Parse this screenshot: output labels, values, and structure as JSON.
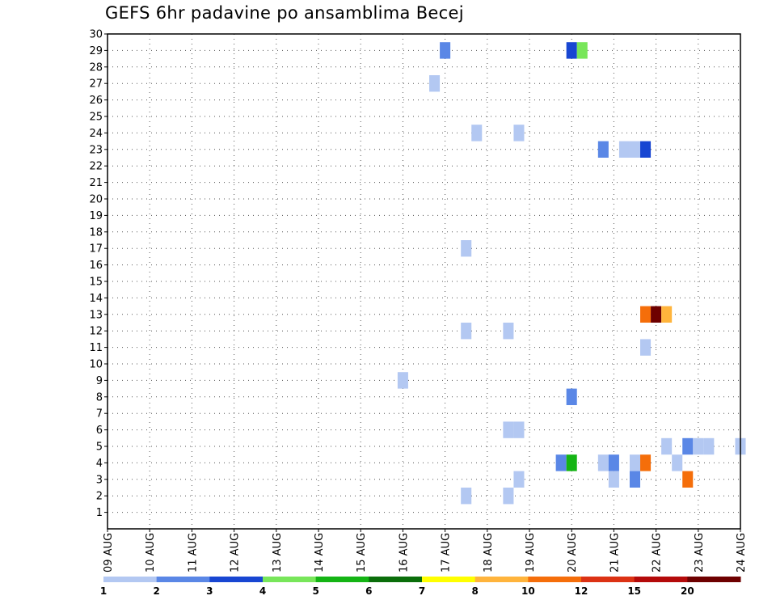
{
  "chart_data": {
    "type": "heatmap",
    "title": "GEFS 6hr padavine po ansamblima Becej",
    "x_tick_labels": [
      "09 AUG",
      "10 AUG",
      "11 AUG",
      "12 AUG",
      "13 AUG",
      "14 AUG",
      "15 AUG",
      "16 AUG",
      "17 AUG",
      "18 AUG",
      "19 AUG",
      "20 AUG",
      "21 AUG",
      "22 AUG",
      "23 AUG",
      "24 AUG"
    ],
    "x_start": "09 AUG 00Z",
    "x_step_hours": 6,
    "y_range": [
      0,
      30
    ],
    "y_ticks": [
      1,
      2,
      3,
      4,
      5,
      6,
      7,
      8,
      9,
      10,
      11,
      12,
      13,
      14,
      15,
      16,
      17,
      18,
      19,
      20,
      21,
      22,
      23,
      24,
      25,
      26,
      27,
      28,
      29,
      30
    ],
    "grid": true,
    "colorbar": {
      "labels": [
        "1",
        "2",
        "3",
        "4",
        "5",
        "6",
        "7",
        "8",
        "10",
        "12",
        "15",
        "20"
      ],
      "colors": [
        "#b3c8f2",
        "#5a87e6",
        "#1846d2",
        "#78e65a",
        "#14b414",
        "#0a6e0a",
        "#ffff00",
        "#ffb43c",
        "#f56e0a",
        "#dc3214",
        "#b40a0a",
        "#6e0000"
      ]
    },
    "cells": [
      {
        "step": 32,
        "member": 29,
        "bin": 2
      },
      {
        "step": 44,
        "member": 29,
        "bin": 3
      },
      {
        "step": 45,
        "member": 29,
        "bin": 4
      },
      {
        "step": 31,
        "member": 27,
        "bin": 1
      },
      {
        "step": 35,
        "member": 24,
        "bin": 1
      },
      {
        "step": 39,
        "member": 24,
        "bin": 1
      },
      {
        "step": 47,
        "member": 23,
        "bin": 2
      },
      {
        "step": 49,
        "member": 23,
        "bin": 1
      },
      {
        "step": 50,
        "member": 23,
        "bin": 1
      },
      {
        "step": 51,
        "member": 23,
        "bin": 3
      },
      {
        "step": 34,
        "member": 17,
        "bin": 1
      },
      {
        "step": 51,
        "member": 13,
        "bin": 9
      },
      {
        "step": 52,
        "member": 13,
        "bin": 12
      },
      {
        "step": 53,
        "member": 13,
        "bin": 8
      },
      {
        "step": 34,
        "member": 12,
        "bin": 1
      },
      {
        "step": 38,
        "member": 12,
        "bin": 1
      },
      {
        "step": 51,
        "member": 11,
        "bin": 1
      },
      {
        "step": 28,
        "member": 9,
        "bin": 1
      },
      {
        "step": 44,
        "member": 8,
        "bin": 2
      },
      {
        "step": 38,
        "member": 6,
        "bin": 1
      },
      {
        "step": 39,
        "member": 6,
        "bin": 1
      },
      {
        "step": 53,
        "member": 5,
        "bin": 1
      },
      {
        "step": 55,
        "member": 5,
        "bin": 2
      },
      {
        "step": 56,
        "member": 5,
        "bin": 1
      },
      {
        "step": 57,
        "member": 5,
        "bin": 1
      },
      {
        "step": 60,
        "member": 5,
        "bin": 1
      },
      {
        "step": 43,
        "member": 4,
        "bin": 2
      },
      {
        "step": 44,
        "member": 4,
        "bin": 5
      },
      {
        "step": 47,
        "member": 4,
        "bin": 1
      },
      {
        "step": 48,
        "member": 4,
        "bin": 2
      },
      {
        "step": 50,
        "member": 4,
        "bin": 1
      },
      {
        "step": 51,
        "member": 4,
        "bin": 9
      },
      {
        "step": 54,
        "member": 4,
        "bin": 1
      },
      {
        "step": 39,
        "member": 3,
        "bin": 1
      },
      {
        "step": 48,
        "member": 3,
        "bin": 1
      },
      {
        "step": 50,
        "member": 3,
        "bin": 2
      },
      {
        "step": 55,
        "member": 3,
        "bin": 9
      },
      {
        "step": 34,
        "member": 2,
        "bin": 1
      },
      {
        "step": 38,
        "member": 2,
        "bin": 1
      }
    ]
  }
}
